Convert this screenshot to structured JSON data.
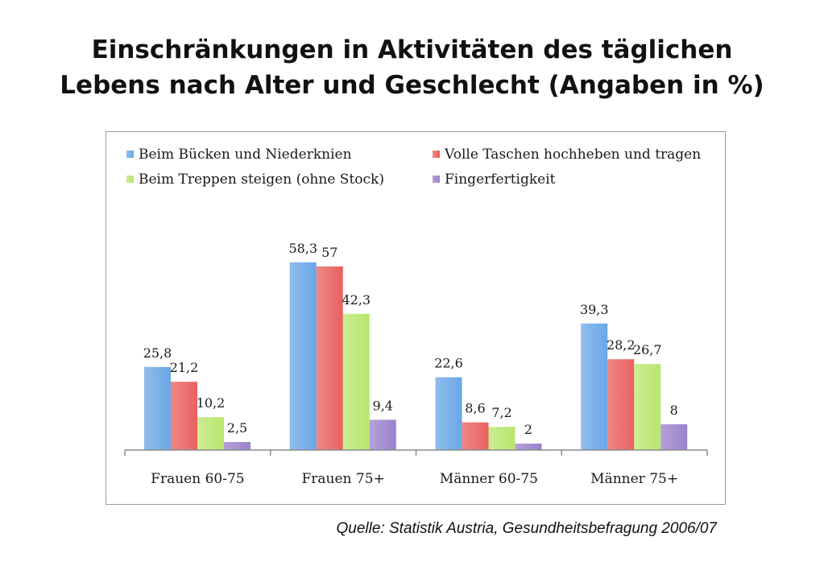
{
  "title": {
    "line1": "Einschränkungen in Aktivitäten des täglichen",
    "line2": "Lebens nach Alter und Geschlecht (Angaben in %)"
  },
  "source": "Quelle: Statistik Austria, Gesundheitsbefragung 2006/07",
  "chart_data": {
    "type": "bar",
    "title": "Einschränkungen in Aktivitäten des täglichen Lebens nach Alter und Geschlecht (Angaben in %)",
    "xlabel": "",
    "ylabel": "",
    "ylim": [
      0,
      65
    ],
    "grid": false,
    "legend_position": "top",
    "categories": [
      "Frauen 60-75",
      "Frauen 75+",
      "Männer 60-75",
      "Männer 75+"
    ],
    "series": [
      {
        "name": "Beim Bücken und Niederknien",
        "color": "#6aa7e6",
        "values": [
          25.8,
          58.3,
          22.6,
          39.3
        ],
        "labels": [
          "25,8",
          "58,3",
          "22,6",
          "39,3"
        ]
      },
      {
        "name": "Volle Taschen hochheben und tragen",
        "color": "#e9605f",
        "values": [
          21.2,
          57,
          8.6,
          28.2
        ],
        "labels": [
          "21,2",
          "57",
          "8,6",
          "28,2"
        ]
      },
      {
        "name": "Beim Treppen steigen (ohne Stock)",
        "color": "#b9e66e",
        "values": [
          10.2,
          42.3,
          7.2,
          26.7
        ],
        "labels": [
          "10,2",
          "42,3",
          "7,2",
          "26,7"
        ]
      },
      {
        "name": "Fingerfertigkeit",
        "color": "#9b82cc",
        "values": [
          2.5,
          9.4,
          2,
          8
        ],
        "labels": [
          "2,5",
          "9,4",
          "2",
          "8"
        ]
      }
    ]
  }
}
